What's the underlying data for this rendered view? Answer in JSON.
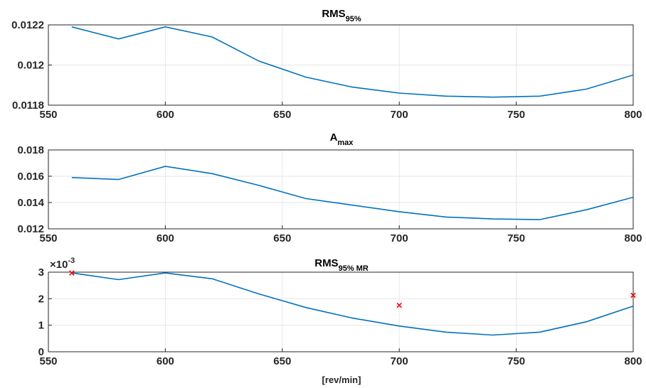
{
  "chart_data": [
    {
      "type": "line",
      "title_main": "RMS",
      "title_sub": "95%",
      "x": [
        560,
        580,
        600,
        620,
        640,
        660,
        680,
        700,
        720,
        740,
        760,
        780,
        800
      ],
      "series": [
        {
          "values": [
            0.01219,
            0.01213,
            0.01219,
            0.01214,
            0.01202,
            0.01194,
            0.01189,
            0.01186,
            0.011845,
            0.01184,
            0.011845,
            0.01188,
            0.01195
          ],
          "color": "#0072bd"
        }
      ],
      "xlim": [
        550,
        800
      ],
      "ylim": [
        0.0118,
        0.0122
      ],
      "xticks": [
        550,
        600,
        650,
        700,
        750,
        800
      ],
      "yticks": [
        0.0118,
        0.012,
        0.0122
      ],
      "ytick_labels": [
        "0.0118",
        "0.012",
        "0.0122"
      ],
      "grid": true
    },
    {
      "type": "line",
      "title_main": "A",
      "title_sub": "max",
      "x": [
        560,
        580,
        600,
        620,
        640,
        660,
        680,
        700,
        720,
        740,
        760,
        780,
        800
      ],
      "series": [
        {
          "values": [
            0.0159,
            0.01575,
            0.01675,
            0.0162,
            0.0153,
            0.0143,
            0.0138,
            0.0133,
            0.0129,
            0.01275,
            0.0127,
            0.01345,
            0.0144
          ],
          "color": "#0072bd"
        }
      ],
      "xlim": [
        550,
        800
      ],
      "ylim": [
        0.012,
        0.018
      ],
      "xticks": [
        550,
        600,
        650,
        700,
        750,
        800
      ],
      "yticks": [
        0.012,
        0.014,
        0.016,
        0.018
      ],
      "ytick_labels": [
        "0.012",
        "0.014",
        "0.016",
        "0.018"
      ],
      "grid": true
    },
    {
      "type": "line",
      "title_main": "RMS",
      "title_sub": "95% MR",
      "x": [
        560,
        580,
        600,
        620,
        640,
        660,
        680,
        700,
        720,
        740,
        760,
        780,
        800
      ],
      "series": [
        {
          "values": [
            2.97,
            2.72,
            2.97,
            2.75,
            2.18,
            1.67,
            1.27,
            0.97,
            0.74,
            0.63,
            0.74,
            1.13,
            1.72
          ],
          "color": "#0072bd"
        }
      ],
      "markers": [
        {
          "x": 560,
          "y": 2.97,
          "symbol": "x",
          "color": "#ff0000"
        },
        {
          "x": 700,
          "y": 1.75,
          "symbol": "x",
          "color": "#ff0000"
        },
        {
          "x": 800,
          "y": 2.13,
          "symbol": "x",
          "color": "#ff0000"
        }
      ],
      "xlim": [
        550,
        800
      ],
      "ylim": [
        0,
        3
      ],
      "xticks": [
        550,
        600,
        650,
        700,
        750,
        800
      ],
      "yticks": [
        0,
        1,
        2,
        3
      ],
      "ytick_labels": [
        "0",
        "1",
        "2",
        "3"
      ],
      "y_exponent_base": "×10",
      "y_exponent": "-3",
      "xlabel": "[rev/min]",
      "grid": true
    }
  ]
}
